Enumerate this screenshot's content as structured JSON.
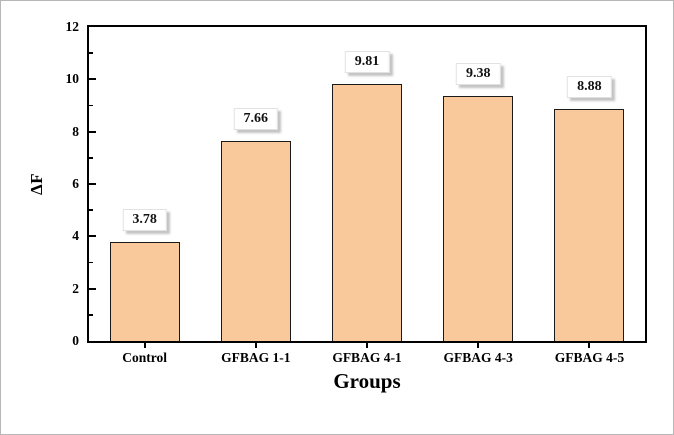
{
  "chart_data": {
    "type": "bar",
    "title": "",
    "xlabel": "Groups",
    "ylabel": "ΔF",
    "categories": [
      "Control",
      "GFBAG 1-1",
      "GFBAG 4-1",
      "GFBAG 4-3",
      "GFBAG 4-5"
    ],
    "values": [
      3.78,
      7.66,
      9.81,
      9.38,
      8.88
    ],
    "value_labels": [
      "3.78",
      "7.66",
      "9.81",
      "9.38",
      "8.88"
    ],
    "ylim": [
      0,
      12
    ],
    "yticks": [
      0,
      2,
      4,
      6,
      8,
      10,
      12
    ],
    "ytick_step": 2,
    "grid": false,
    "legend": "none",
    "bar_fill_color": "#f9c99b",
    "bar_border_color": "#1a1a1a",
    "axis_color": "#000000",
    "frame_border_color": "#b7b7b7"
  }
}
